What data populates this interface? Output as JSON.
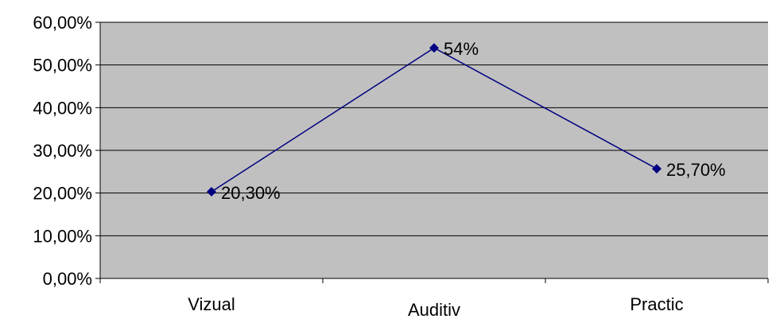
{
  "chart_data": {
    "type": "line",
    "categories": [
      "Vizual",
      "Auditiv",
      "Practic"
    ],
    "series": [
      {
        "values": [
          20.3,
          54,
          25.7
        ],
        "labels": [
          "20,30%",
          "54%",
          "25,70%"
        ],
        "color": "#000080"
      }
    ],
    "ylim": [
      0,
      60
    ],
    "yticks": [
      {
        "value": 0,
        "label": "0,00%"
      },
      {
        "value": 10,
        "label": "10,00%"
      },
      {
        "value": 20,
        "label": "20,00%"
      },
      {
        "value": 30,
        "label": "30,00%"
      },
      {
        "value": 40,
        "label": "40,00%"
      },
      {
        "value": 50,
        "label": "50,00%"
      },
      {
        "value": 60,
        "label": "60,00%"
      }
    ],
    "grid": true,
    "legend": "none",
    "colors": {
      "plot_background": "#c0c0c0",
      "gridline": "#000000",
      "line": "#000080",
      "marker": "#000080"
    },
    "marker": "diamond"
  }
}
